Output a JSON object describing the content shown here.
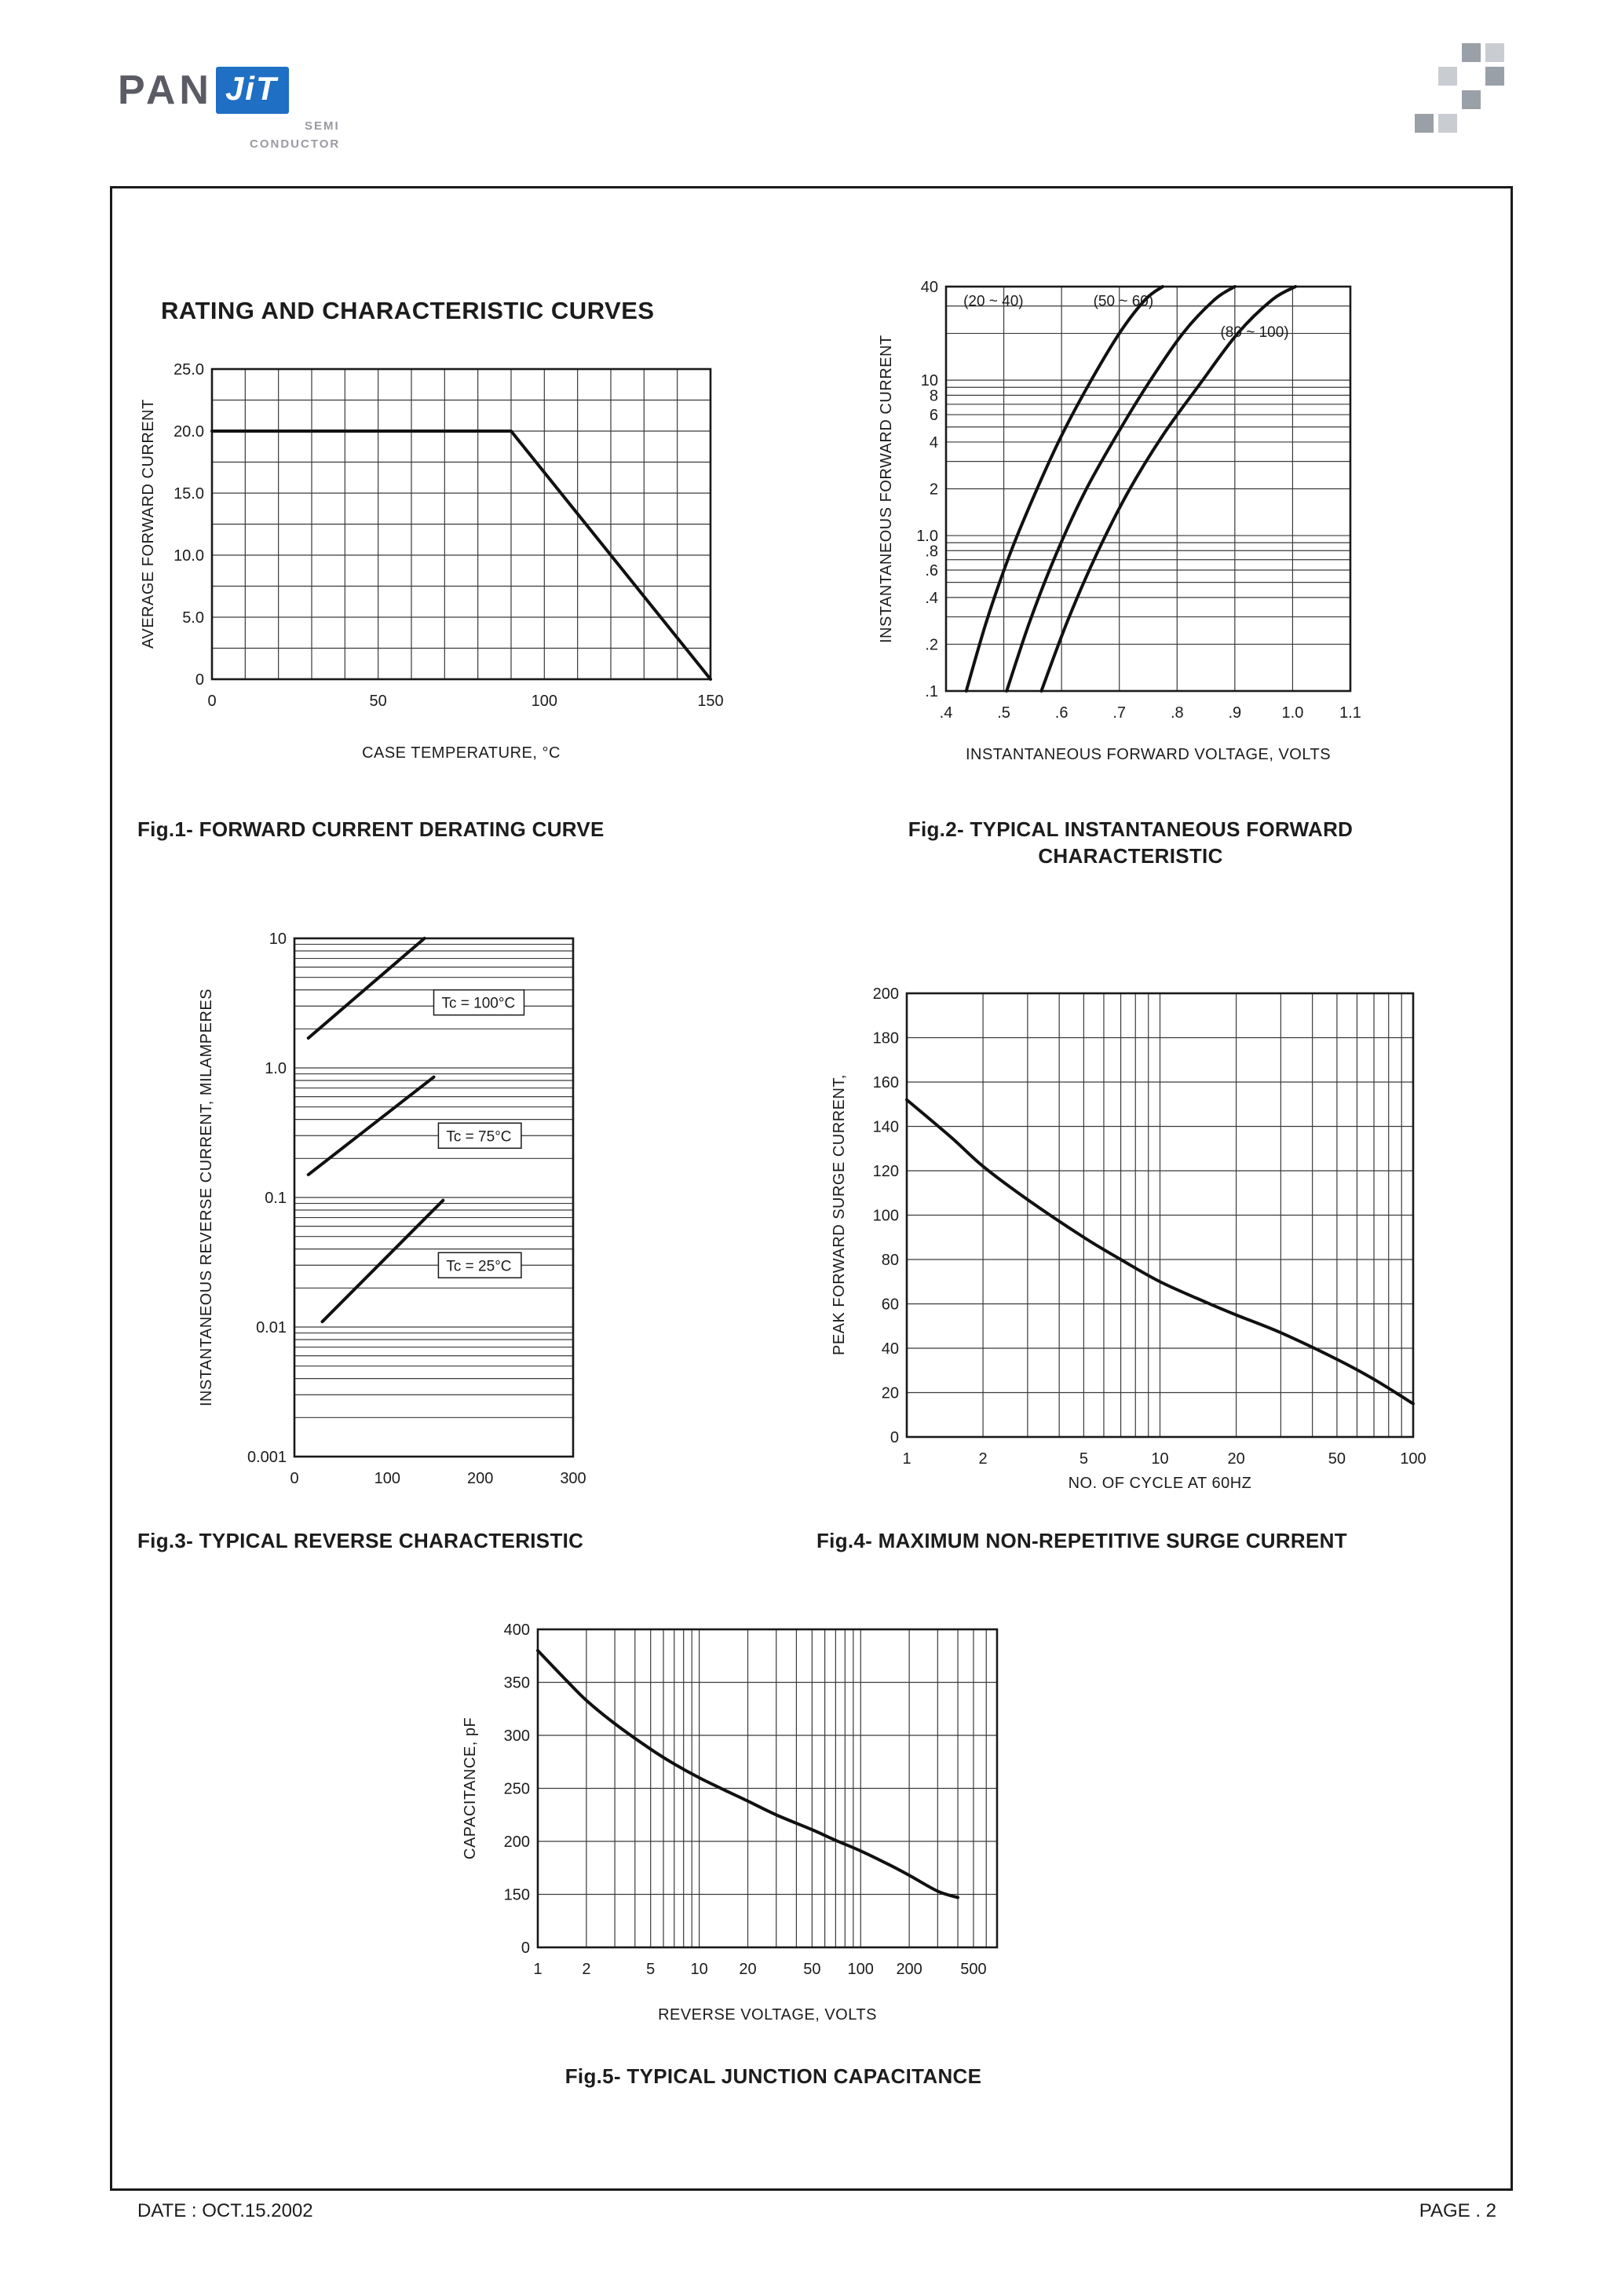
{
  "page_title": "RATING AND CHARACTERISTIC CURVES",
  "header": {
    "logo": {
      "pan": "PAN",
      "jit": "JiT",
      "semi": "SEMI",
      "conductor": "CONDUCTOR"
    }
  },
  "footer": {
    "date": "DATE : OCT.15.2002",
    "page": "PAGE . 2"
  },
  "colors": {
    "line": "#111111",
    "grid": "#3a3a3a",
    "text": "#1c1c1c",
    "brand_blue": "#1f6fc4"
  },
  "chart_data": [
    {
      "id": "fig1",
      "type": "line",
      "caption": "Fig.1- FORWARD CURRENT DERATING CURVE",
      "xlabel": "CASE TEMPERATURE, °C",
      "ylabel": "AVERAGE FORWARD CURRENT",
      "x": {
        "scale": "linear",
        "min": 0,
        "max": 150,
        "ticks": [
          0,
          50,
          100,
          150
        ],
        "tick_labels": [
          "0",
          "50",
          "100",
          "150"
        ],
        "grid_step": 10
      },
      "y": {
        "scale": "linear",
        "min": 0,
        "max": 25,
        "ticks": [
          0,
          5,
          10,
          15,
          20,
          25
        ],
        "tick_labels": [
          "0",
          "5.0",
          "10.0",
          "15.0",
          "20.0",
          "25.0"
        ],
        "grid_step": 2.5
      },
      "series": [
        {
          "name": "derating-curve",
          "smooth": false,
          "points": [
            [
              0,
              20
            ],
            [
              90,
              20
            ],
            [
              150,
              0
            ]
          ]
        }
      ]
    },
    {
      "id": "fig2",
      "type": "line",
      "caption": "Fig.2- TYPICAL INSTANTANEOUS FORWARD CHARACTERISTIC",
      "xlabel": "INSTANTANEOUS FORWARD VOLTAGE, VOLTS",
      "ylabel": "INSTANTANEOUS FORWARD CURRENT",
      "x": {
        "scale": "linear",
        "min": 0.4,
        "max": 1.1,
        "ticks": [
          0.4,
          0.5,
          0.6,
          0.7,
          0.8,
          0.9,
          1.0,
          1.1
        ],
        "tick_labels": [
          ".4",
          ".5",
          ".6",
          ".7",
          ".8",
          ".9",
          "1.0",
          "1.1"
        ],
        "grid": "ticks"
      },
      "y": {
        "scale": "log",
        "min": 0.1,
        "max": 40,
        "ticks": [
          0.1,
          0.2,
          0.4,
          0.6,
          0.8,
          1,
          2,
          4,
          6,
          8,
          10,
          40
        ],
        "tick_labels": [
          ".1",
          ".2",
          ".4",
          ".6",
          ".8",
          "1.0",
          "2",
          "4",
          "6",
          "8",
          "10",
          "40"
        ],
        "grid": "log"
      },
      "series": [
        {
          "name": "vf-20-40",
          "label": "(20 ~ 40)",
          "label_at": [
            0.43,
            30
          ],
          "points": [
            [
              0.435,
              0.1
            ],
            [
              0.47,
              0.28
            ],
            [
              0.51,
              0.75
            ],
            [
              0.555,
              1.9
            ],
            [
              0.6,
              4.4
            ],
            [
              0.648,
              9.5
            ],
            [
              0.7,
              20
            ],
            [
              0.745,
              33
            ],
            [
              0.775,
              40
            ]
          ]
        },
        {
          "name": "vf-50-60",
          "label": "(50 ~ 60)",
          "label_at": [
            0.655,
            30
          ],
          "points": [
            [
              0.505,
              0.1
            ],
            [
              0.545,
              0.28
            ],
            [
              0.59,
              0.75
            ],
            [
              0.64,
              1.9
            ],
            [
              0.695,
              4.4
            ],
            [
              0.75,
              9.5
            ],
            [
              0.81,
              20
            ],
            [
              0.865,
              33
            ],
            [
              0.9,
              40
            ]
          ]
        },
        {
          "name": "vf-80-100",
          "label": "(80 ~ 100)",
          "label_at": [
            0.875,
            19
          ],
          "points": [
            [
              0.565,
              0.1
            ],
            [
              0.61,
              0.28
            ],
            [
              0.66,
              0.75
            ],
            [
              0.715,
              1.9
            ],
            [
              0.775,
              4.4
            ],
            [
              0.84,
              9.5
            ],
            [
              0.905,
              20
            ],
            [
              0.965,
              33
            ],
            [
              1.005,
              40
            ]
          ]
        }
      ]
    },
    {
      "id": "fig3",
      "type": "line",
      "caption": "Fig.3- TYPICAL REVERSE CHARACTERISTIC",
      "xlabel": "",
      "ylabel": "INSTANTANEOUS REVERSE CURRENT, MILAMPERES",
      "x": {
        "scale": "linear",
        "min": 0,
        "max": 300,
        "ticks": [
          0,
          100,
          200,
          300
        ],
        "tick_labels": [
          "0",
          "100",
          "200",
          "300"
        ]
      },
      "y": {
        "scale": "log",
        "min": 0.001,
        "max": 10,
        "ticks": [
          0.001,
          0.01,
          0.1,
          1,
          10
        ],
        "tick_labels": [
          "0.001",
          "0.01",
          "0.1",
          "1.0",
          "10"
        ],
        "grid": "log"
      },
      "series": [
        {
          "name": "ir-100c",
          "label": "Tc = 100°C",
          "boxed": true,
          "label_at": [
            150,
            3.2
          ],
          "smooth": false,
          "points": [
            [
              15,
              1.7
            ],
            [
              140,
              10
            ]
          ]
        },
        {
          "name": "ir-75c",
          "label": "Tc = 75°C",
          "boxed": true,
          "label_at": [
            155,
            0.3
          ],
          "smooth": false,
          "points": [
            [
              15,
              0.15
            ],
            [
              150,
              0.85
            ]
          ]
        },
        {
          "name": "ir-25c",
          "label": "Tc = 25°C",
          "boxed": true,
          "label_at": [
            155,
            0.03
          ],
          "smooth": false,
          "points": [
            [
              30,
              0.011
            ],
            [
              160,
              0.095
            ]
          ]
        }
      ]
    },
    {
      "id": "fig4",
      "type": "line",
      "caption": "Fig.4- MAXIMUM NON-REPETITIVE SURGE CURRENT",
      "xlabel": "NO. OF CYCLE AT 60HZ",
      "ylabel": "PEAK FORWARD SURGE CURRENT,",
      "x": {
        "scale": "log",
        "min": 1,
        "max": 100,
        "ticks": [
          1,
          2,
          5,
          10,
          20,
          50,
          100
        ],
        "tick_labels": [
          "1",
          "2",
          "5",
          "10",
          "20",
          "50",
          "100"
        ],
        "grid": "log"
      },
      "y": {
        "scale": "linear",
        "min": 0,
        "max": 200,
        "ticks": [
          0,
          20,
          40,
          60,
          80,
          100,
          120,
          140,
          160,
          180,
          200
        ],
        "tick_labels": [
          "0",
          "20",
          "40",
          "60",
          "80",
          "100",
          "120",
          "140",
          "160",
          "180",
          "200"
        ],
        "grid_step": 20
      },
      "series": [
        {
          "name": "surge-current",
          "points": [
            [
              1,
              152
            ],
            [
              1.5,
              135
            ],
            [
              2,
              122
            ],
            [
              3,
              107
            ],
            [
              5,
              90
            ],
            [
              7,
              80
            ],
            [
              10,
              70
            ],
            [
              15,
              61
            ],
            [
              20,
              55
            ],
            [
              30,
              47
            ],
            [
              50,
              35
            ],
            [
              70,
              26
            ],
            [
              100,
              15
            ]
          ]
        }
      ]
    },
    {
      "id": "fig5",
      "type": "line",
      "caption": "Fig.5- TYPICAL JUNCTION CAPACITANCE",
      "xlabel": "REVERSE VOLTAGE, VOLTS",
      "ylabel": "CAPACITANCE, pF",
      "x": {
        "scale": "log",
        "min": 1,
        "max": 700,
        "ticks": [
          1,
          2,
          5,
          10,
          20,
          50,
          100,
          200,
          500
        ],
        "tick_labels": [
          "1",
          "2",
          "5",
          "10",
          "20",
          "50",
          "100",
          "200",
          "500"
        ],
        "grid": "log"
      },
      "y": {
        "scale": "segmented",
        "ticks": [
          0,
          150,
          200,
          250,
          300,
          350,
          400
        ],
        "tick_labels": [
          "0",
          "150",
          "200",
          "250",
          "300",
          "350",
          "400"
        ],
        "grid": "ticks"
      },
      "series": [
        {
          "name": "junction-capacitance",
          "points": [
            [
              1,
              380
            ],
            [
              1.5,
              352
            ],
            [
              2,
              333
            ],
            [
              3,
              311
            ],
            [
              5,
              287
            ],
            [
              7,
              273
            ],
            [
              10,
              260
            ],
            [
              15,
              247
            ],
            [
              20,
              238
            ],
            [
              30,
              225
            ],
            [
              50,
              211
            ],
            [
              70,
              201
            ],
            [
              100,
              191
            ],
            [
              150,
              178
            ],
            [
              200,
              168
            ],
            [
              300,
              153
            ],
            [
              400,
              141
            ]
          ]
        }
      ]
    }
  ]
}
